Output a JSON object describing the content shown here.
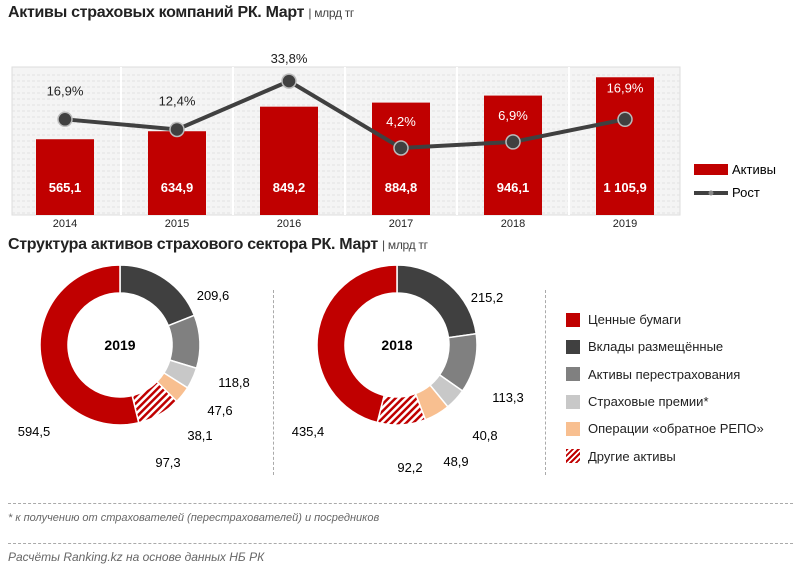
{
  "chart_data": [
    {
      "type": "bar+line",
      "title": "Активы страховых компаний РК. Март",
      "unit": "млрд тг",
      "categories": [
        "2014",
        "2015",
        "2016",
        "2017",
        "2018",
        "2019"
      ],
      "series": [
        {
          "name": "Активы",
          "type": "bar",
          "values": [
            565.1,
            634.9,
            849.2,
            884.8,
            946.1,
            1105.9
          ],
          "labels": [
            "565,1",
            "634,9",
            "849,2",
            "884,8",
            "946,1",
            "1 105,9"
          ],
          "color": "#c00000"
        },
        {
          "name": "Рост",
          "type": "line",
          "values": [
            16.9,
            12.4,
            33.8,
            4.2,
            6.9,
            16.9
          ],
          "labels": [
            "16,9%",
            "12,4%",
            "33,8%",
            "4,2%",
            "6,9%",
            "16,9%"
          ],
          "color": "#404040"
        }
      ],
      "legend": "right",
      "grid": true
    },
    {
      "type": "pie",
      "title": "Структура активов страхового сектора РК. Март",
      "unit": "млрд тг",
      "categories": [
        "Вклады размещённые",
        "Активы перестрахования",
        "Страховые премии*",
        "Операции «обратное РЕПО»",
        "Другие активы",
        "Ценные бумаги"
      ],
      "colors": [
        "#404040",
        "#808080",
        "#c8c8c8",
        "#f8bf90",
        "hatched-red",
        "#c00000"
      ],
      "series": [
        {
          "name": "2019",
          "values": [
            209.6,
            118.8,
            47.6,
            38.1,
            97.3,
            594.5
          ],
          "labels": [
            "209,6",
            "118,8",
            "47,6",
            "38,1",
            "97,3",
            "594,5"
          ]
        },
        {
          "name": "2018",
          "values": [
            215.2,
            113.3,
            40.8,
            48.9,
            92.2,
            435.4
          ],
          "labels": [
            "215,2",
            "113,3",
            "40,8",
            "48,9",
            "92,2",
            "435,4"
          ]
        }
      ],
      "legend": "right"
    }
  ],
  "legend2": [
    "Ценные бумаги",
    "Вклады размещённые",
    "Активы перестрахования",
    "Страховые премии*",
    "Операции «обратное РЕПО»",
    "Другие активы"
  ],
  "legend2_colors": [
    "#c00000",
    "#404040",
    "#808080",
    "#c8c8c8",
    "#f8bf90",
    "hatched-red"
  ],
  "footnote": "* к получению от страхователей (перестрахователей) и посредников",
  "source": "Расчёты Ranking.kz на основе данных НБ РК"
}
